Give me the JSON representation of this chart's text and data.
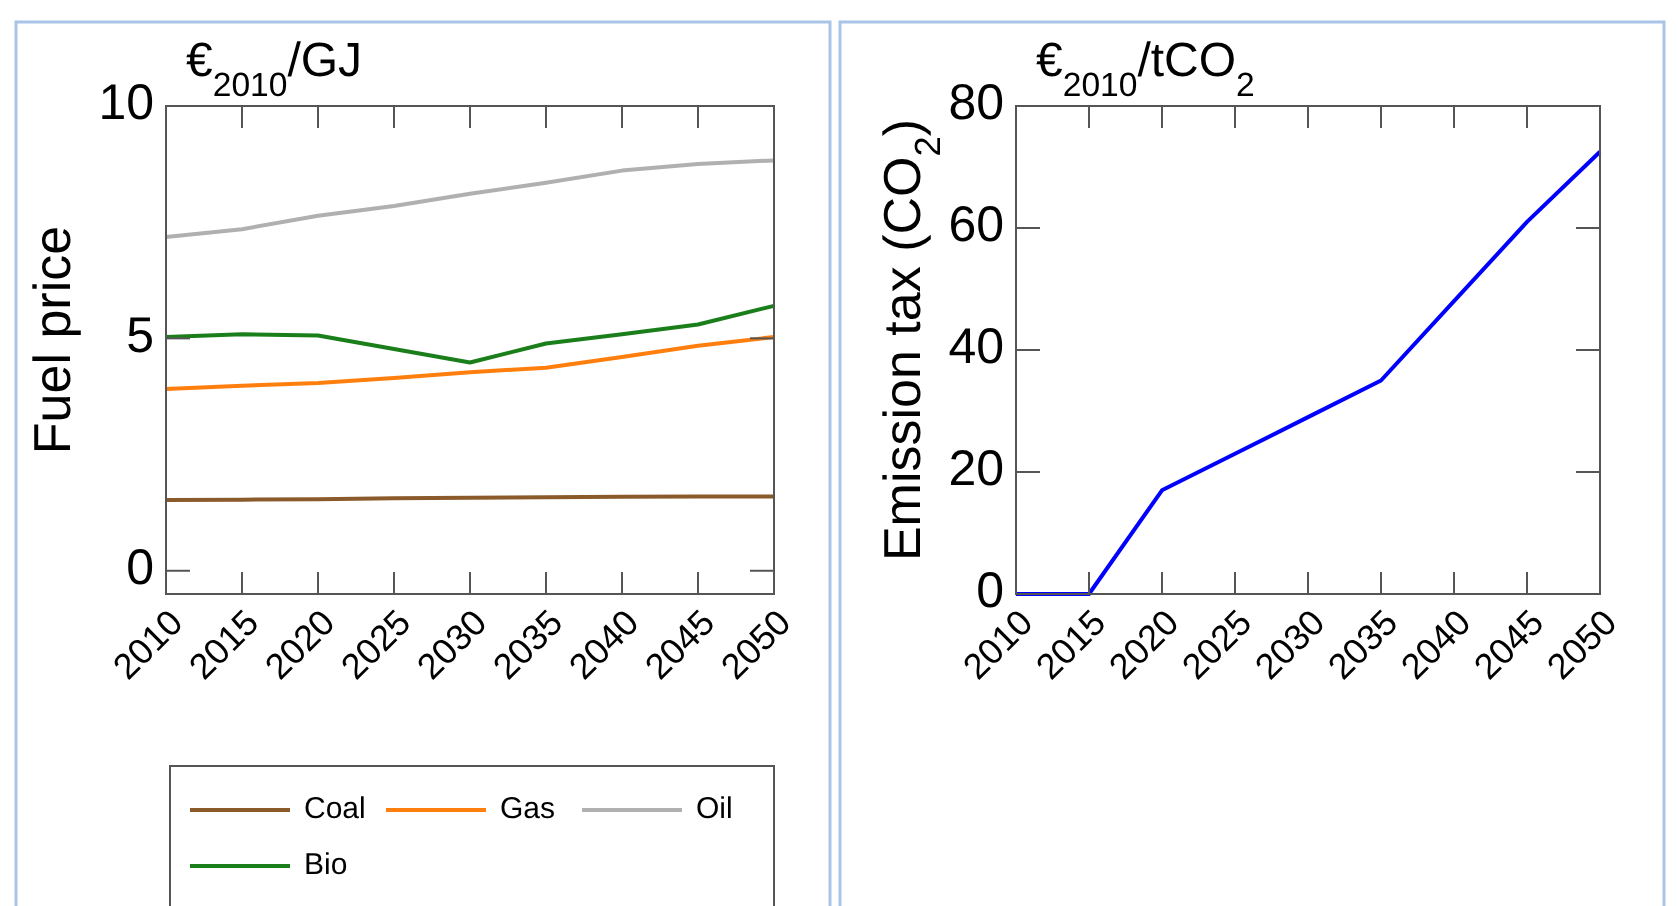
{
  "chart_data": [
    {
      "type": "line",
      "title": "€$_{2010}$/GJ",
      "ylabel": "Fuel price",
      "x": [
        2010,
        2015,
        2020,
        2025,
        2030,
        2035,
        2040,
        2045,
        2050
      ],
      "xlim": [
        2010,
        2050
      ],
      "xticks": [
        2010,
        2015,
        2020,
        2025,
        2030,
        2035,
        2040,
        2045,
        2050
      ],
      "ylim": [
        -0.5,
        10
      ],
      "yticks": [
        0,
        5,
        10
      ],
      "grid": false,
      "legend": "bottom",
      "series": [
        {
          "name": "Coal",
          "color": "#8b5a2b",
          "values": [
            1.52,
            1.53,
            1.54,
            1.56,
            1.57,
            1.58,
            1.59,
            1.6,
            1.6
          ]
        },
        {
          "name": "Gas",
          "color": "#ff7f0e",
          "values": [
            3.91,
            3.98,
            4.04,
            4.15,
            4.27,
            4.37,
            4.6,
            4.84,
            5.03
          ]
        },
        {
          "name": "Oil",
          "color": "#b0b0b0",
          "values": [
            7.18,
            7.35,
            7.64,
            7.85,
            8.11,
            8.35,
            8.61,
            8.75,
            8.83
          ]
        },
        {
          "name": "Bio",
          "color": "#1a7f1a",
          "values": [
            5.03,
            5.09,
            5.06,
            4.77,
            4.48,
            4.89,
            5.09,
            5.3,
            5.7
          ]
        }
      ]
    },
    {
      "type": "line",
      "title": "€$_{2010}$/tCO$_{2}$",
      "ylabel": "Emission tax (CO$_{2}$)",
      "x": [
        2010,
        2015,
        2020,
        2025,
        2030,
        2035,
        2040,
        2045,
        2050
      ],
      "xlim": [
        2010,
        2050
      ],
      "xticks": [
        2010,
        2015,
        2020,
        2025,
        2030,
        2035,
        2040,
        2045,
        2050
      ],
      "ylim": [
        0,
        80
      ],
      "yticks": [
        0,
        20,
        40,
        60,
        80
      ],
      "grid": false,
      "series": [
        {
          "color": "#0000ff",
          "values": [
            0,
            0,
            17,
            23,
            29,
            35,
            48,
            61,
            72.5
          ]
        }
      ]
    }
  ]
}
